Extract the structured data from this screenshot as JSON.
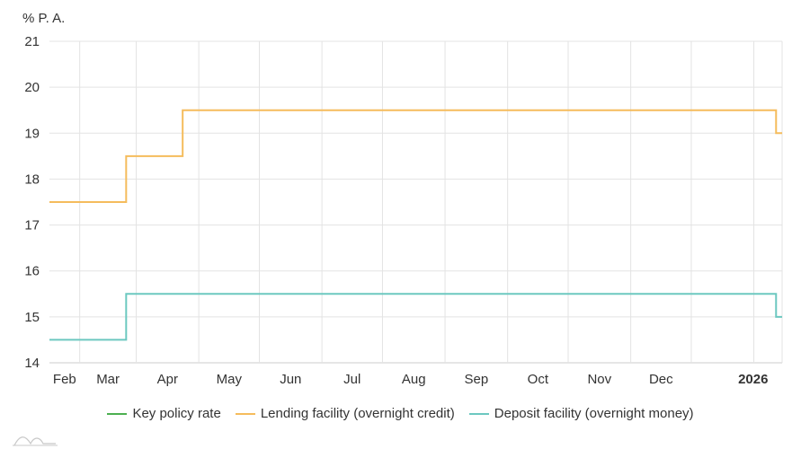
{
  "chart_data": {
    "type": "line",
    "unit_label": "% P. A.",
    "y_ticks": [
      14,
      15,
      16,
      17,
      18,
      19,
      20,
      21
    ],
    "ylim": [
      14,
      21
    ],
    "x_ticks": [
      {
        "label": "Feb",
        "bold": false
      },
      {
        "label": "Mar",
        "bold": false
      },
      {
        "label": "Apr",
        "bold": false
      },
      {
        "label": "May",
        "bold": false
      },
      {
        "label": "Jun",
        "bold": false
      },
      {
        "label": "Jul",
        "bold": false
      },
      {
        "label": "Aug",
        "bold": false
      },
      {
        "label": "Sep",
        "bold": false
      },
      {
        "label": "Oct",
        "bold": false
      },
      {
        "label": "Nov",
        "bold": false
      },
      {
        "label": "Dec",
        "bold": false
      },
      {
        "label": "2026",
        "bold": true
      }
    ],
    "xlim": [
      "2025-01-17",
      "2026-01-15"
    ],
    "grid": true,
    "legend_position": "bottom-center",
    "series": [
      {
        "name": "Key policy rate",
        "color": "#4caf50",
        "step": true,
        "points": []
      },
      {
        "name": "Lending facility (overnight credit)",
        "color": "#f5bc5c",
        "step": true,
        "points": [
          {
            "x": "2025-01-17",
            "y": 17.5
          },
          {
            "x": "2025-02-24",
            "y": 18.5
          },
          {
            "x": "2025-03-24",
            "y": 19.5
          },
          {
            "x": "2026-01-12",
            "y": 19.0
          },
          {
            "x": "2026-01-15",
            "y": 19.0
          }
        ]
      },
      {
        "name": "Deposit facility (overnight money)",
        "color": "#6cc8c0",
        "step": true,
        "points": [
          {
            "x": "2025-01-17",
            "y": 14.5
          },
          {
            "x": "2025-02-24",
            "y": 15.5
          },
          {
            "x": "2026-01-12",
            "y": 15.0
          },
          {
            "x": "2026-01-15",
            "y": 15.0
          }
        ]
      }
    ]
  }
}
